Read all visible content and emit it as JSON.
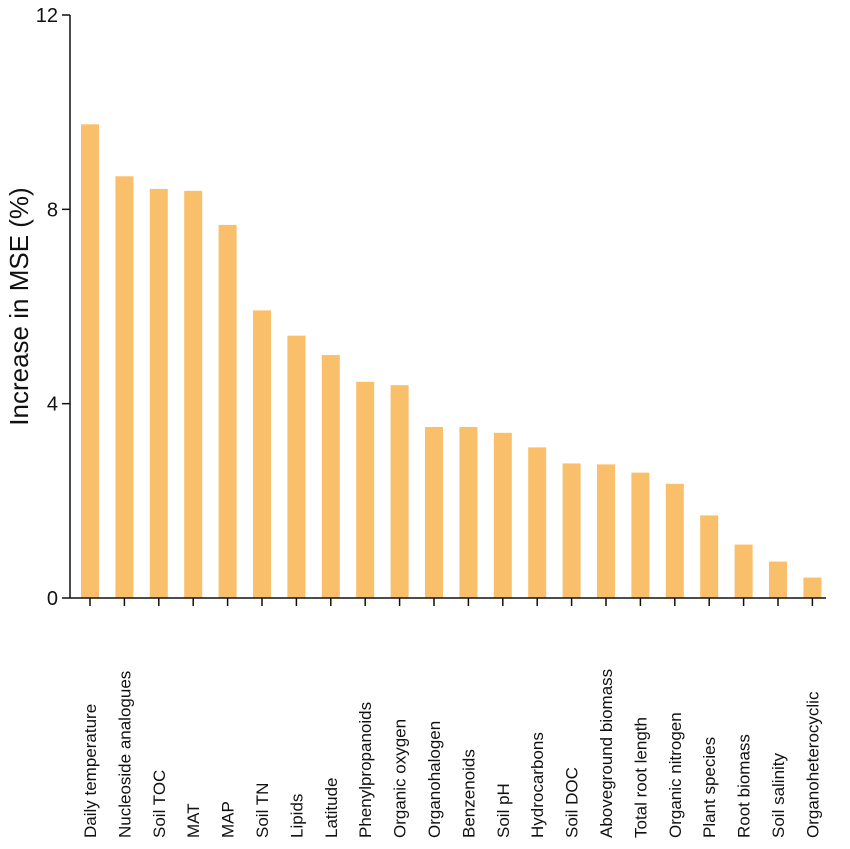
{
  "chart_data": {
    "type": "bar",
    "title": "",
    "xlabel": "",
    "ylabel": "Increase in MSE (%)",
    "ylim": [
      0,
      12
    ],
    "yticks": [
      0,
      4,
      8,
      12
    ],
    "grid": false,
    "bar_color": "#F9BF6B",
    "categories": [
      "Daily temperature",
      "Nucleoside analogues",
      "Soil TOC",
      "MAT",
      "MAP",
      "Soil TN",
      "Lipids",
      "Latitude",
      "Phenylpropanoids",
      "Organic oxygen",
      "Organohalogen",
      "Benzenoids",
      "Soil pH",
      "Hydrocarbons",
      "Soil DOC",
      "Aboveground biomass",
      "Total root length",
      "Organic nitrogen",
      "Plant species",
      "Root biomass",
      "Soil salinity",
      "Organoheterocyclic"
    ],
    "values": [
      9.75,
      8.68,
      8.42,
      8.38,
      7.68,
      5.92,
      5.4,
      5.0,
      4.45,
      4.38,
      3.52,
      3.52,
      3.4,
      3.1,
      2.77,
      2.75,
      2.58,
      2.35,
      1.7,
      1.1,
      0.75,
      0.42
    ]
  }
}
